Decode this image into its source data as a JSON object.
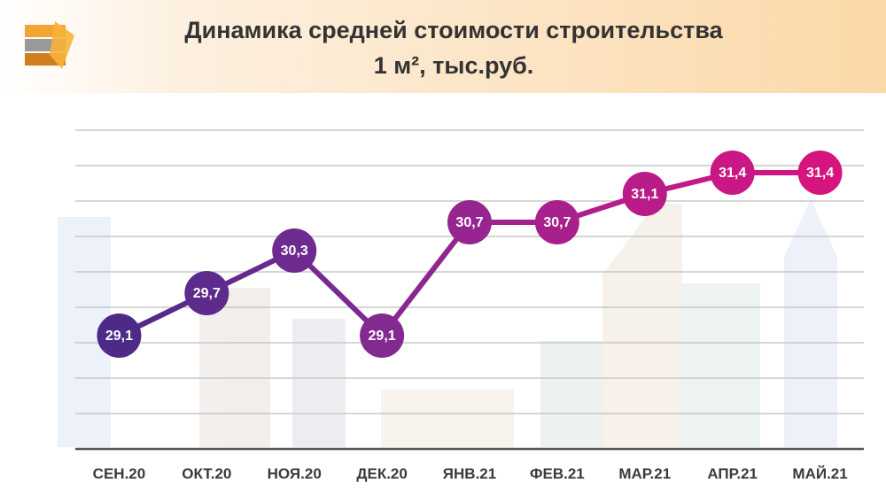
{
  "chart_data": {
    "type": "line",
    "title": [
      "Динамика средней стоимости строительства",
      "1 м², тыс.руб."
    ],
    "categories": [
      "СЕН.20",
      "ОКТ.20",
      "НОЯ.20",
      "ДЕК.20",
      "ЯНВ.21",
      "ФЕВ.21",
      "МАР.21",
      "АПР.21",
      "МАЙ.21"
    ],
    "values": [
      29.1,
      29.7,
      30.3,
      29.1,
      30.7,
      30.7,
      31.1,
      31.4,
      31.4
    ],
    "value_labels": [
      "29,1",
      "29,7",
      "30,3",
      "29,1",
      "30,7",
      "30,7",
      "31,1",
      "31,4",
      "31,4"
    ],
    "colors": [
      "#4e2a88",
      "#5d2b8c",
      "#6e2a8e",
      "#822a90",
      "#962590",
      "#a8208c",
      "#b91c88",
      "#c91883",
      "#d5147e"
    ],
    "ylim": [
      27.5,
      32
    ],
    "yticks": [
      27.5,
      28,
      28.5,
      29,
      29.5,
      30,
      30.5,
      31,
      31.5,
      32
    ],
    "grid": true
  }
}
